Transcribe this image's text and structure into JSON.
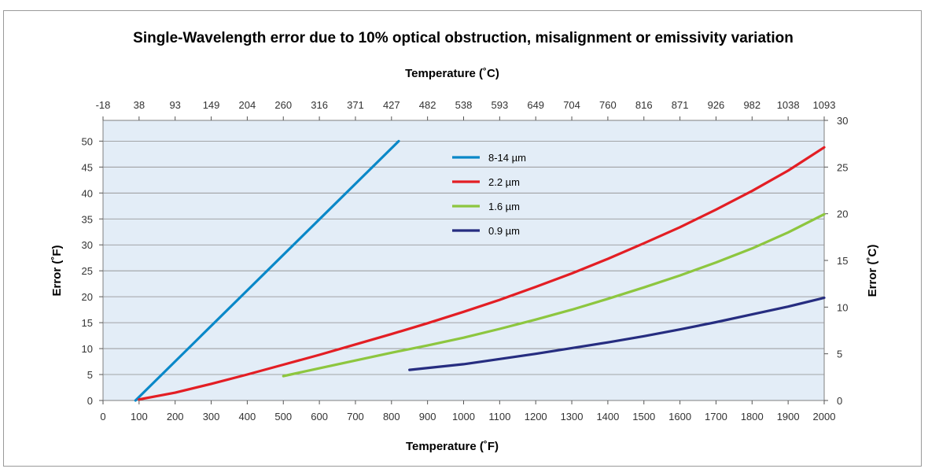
{
  "chart_data": {
    "type": "line",
    "title": "Single-Wavelength error due to 10% optical obstruction, misalignment or emissivity variation",
    "xlabel": "Temperature (˚F)",
    "x2label": "Temperature (˚C)",
    "ylabel": "Error (˚F)",
    "y2label": "Error (˚C)",
    "xlim": [
      0,
      2000
    ],
    "ylim": [
      0,
      54
    ],
    "y2lim": [
      0,
      30
    ],
    "grid": true,
    "legend_position": "top-center",
    "x_ticks": [
      "0",
      "100",
      "200",
      "300",
      "400",
      "500",
      "600",
      "700",
      "800",
      "900",
      "1000",
      "1100",
      "1200",
      "1300",
      "1400",
      "1500",
      "1600",
      "1700",
      "1800",
      "1900",
      "2000"
    ],
    "x2_ticks": [
      "-18",
      "38",
      "93",
      "149",
      "204",
      "260",
      "316",
      "371",
      "427",
      "482",
      "538",
      "593",
      "649",
      "704",
      "760",
      "816",
      "871",
      "926",
      "982",
      "1038",
      "1093"
    ],
    "y_ticks": [
      "0",
      "5",
      "10",
      "15",
      "20",
      "25",
      "30",
      "35",
      "40",
      "45",
      "50"
    ],
    "y2_ticks": [
      "0",
      "5",
      "10",
      "15",
      "20",
      "25",
      "30"
    ],
    "series": [
      {
        "name": "8-14 µm",
        "color": "#0a88c8",
        "x": [
          90,
          820
        ],
        "y": [
          0,
          50
        ]
      },
      {
        "name": "2.2 µm",
        "color": "#e31e24",
        "x": [
          100,
          200,
          300,
          400,
          500,
          600,
          700,
          800,
          900,
          1000,
          1100,
          1200,
          1300,
          1400,
          1500,
          1600,
          1700,
          1800,
          1900,
          2000
        ],
        "y": [
          0.2,
          1.5,
          3.2,
          5.0,
          6.9,
          8.8,
          10.8,
          12.8,
          14.9,
          17.1,
          19.4,
          21.9,
          24.5,
          27.3,
          30.3,
          33.4,
          36.8,
          40.4,
          44.3,
          48.8
        ]
      },
      {
        "name": "1.6 µm",
        "color": "#8dc63f",
        "x": [
          500,
          600,
          700,
          800,
          900,
          1000,
          1100,
          1200,
          1300,
          1400,
          1500,
          1600,
          1700,
          1800,
          1900,
          2000
        ],
        "y": [
          4.7,
          6.2,
          7.7,
          9.2,
          10.6,
          12.1,
          13.8,
          15.6,
          17.5,
          19.6,
          21.8,
          24.1,
          26.6,
          29.3,
          32.4,
          35.9
        ]
      },
      {
        "name": "0.9 µm",
        "color": "#262d80",
        "x": [
          850,
          1000,
          1100,
          1200,
          1300,
          1400,
          1500,
          1600,
          1700,
          1800,
          1900,
          2000
        ],
        "y": [
          5.9,
          7.0,
          8.0,
          9.0,
          10.1,
          11.2,
          12.4,
          13.7,
          15.1,
          16.6,
          18.1,
          19.8
        ]
      }
    ]
  }
}
